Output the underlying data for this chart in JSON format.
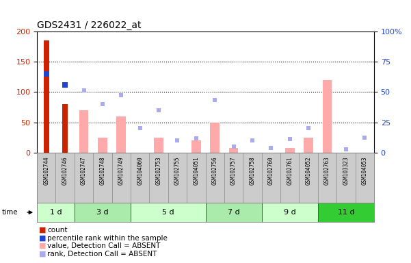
{
  "title": "GDS2431 / 226022_at",
  "samples": [
    "GSM102744",
    "GSM102746",
    "GSM102747",
    "GSM102748",
    "GSM102749",
    "GSM104060",
    "GSM102753",
    "GSM102755",
    "GSM104051",
    "GSM102756",
    "GSM102757",
    "GSM102758",
    "GSM102760",
    "GSM102761",
    "GSM104052",
    "GSM102763",
    "GSM103323",
    "GSM104053"
  ],
  "time_groups": [
    {
      "label": "1 d",
      "start": 0,
      "end": 2,
      "color": "#ccffcc"
    },
    {
      "label": "3 d",
      "start": 2,
      "end": 5,
      "color": "#aaeaaa"
    },
    {
      "label": "5 d",
      "start": 5,
      "end": 9,
      "color": "#ccffcc"
    },
    {
      "label": "7 d",
      "start": 9,
      "end": 12,
      "color": "#aaeaaa"
    },
    {
      "label": "9 d",
      "start": 12,
      "end": 15,
      "color": "#ccffcc"
    },
    {
      "label": "11 d",
      "start": 15,
      "end": 18,
      "color": "#33cc33"
    }
  ],
  "count_values": [
    185,
    80,
    null,
    null,
    null,
    null,
    null,
    null,
    null,
    null,
    null,
    null,
    null,
    null,
    null,
    null,
    null,
    null
  ],
  "percentile_values": [
    130,
    112,
    null,
    null,
    null,
    null,
    null,
    null,
    null,
    null,
    null,
    null,
    null,
    null,
    null,
    null,
    null,
    null
  ],
  "bar_absent_values": [
    null,
    null,
    70,
    25,
    60,
    null,
    25,
    null,
    20,
    50,
    8,
    null,
    null,
    8,
    25,
    120,
    null,
    null
  ],
  "rank_absent_values": [
    null,
    null,
    103,
    80,
    95,
    40,
    70,
    20,
    24,
    87,
    10,
    20,
    8,
    22,
    40,
    null,
    5,
    25
  ],
  "ylim_left": [
    0,
    200
  ],
  "yticks_left": [
    0,
    50,
    100,
    150,
    200
  ],
  "yticks_right_labels": [
    "0",
    "25",
    "50",
    "75",
    "100%"
  ],
  "count_color": "#cc2200",
  "percentile_color": "#2244cc",
  "absent_bar_color": "#ffaaaa",
  "absent_rank_color": "#aaaaee",
  "sample_bg_color": "#cccccc",
  "plot_bg": "#ffffff"
}
